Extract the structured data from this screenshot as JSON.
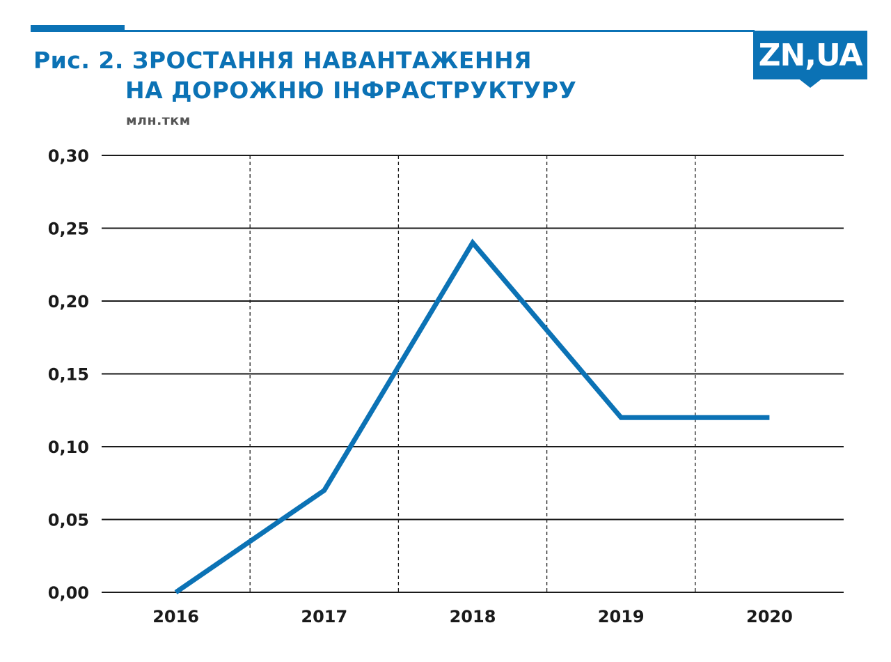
{
  "colors": {
    "accent": "#0b72b5",
    "grid": "#1a1a1a",
    "text": "#1a1a1a"
  },
  "header": {
    "title_line1": "Рис. 2. ЗРОСТАННЯ НАВАНТАЖЕННЯ",
    "title_line2": "НА ДОРОЖНЮ ІНФРАСТРУКТУРУ",
    "unit": "млн.ткм",
    "logo_text": "ZN,UA"
  },
  "chart_data": {
    "type": "line",
    "title": "Рис. 2. ЗРОСТАННЯ НАВАНТАЖЕННЯ НА ДОРОЖНЮ ІНФРАСТРУКТУРУ",
    "ylabel": "млн.ткм",
    "xlabel": "",
    "categories": [
      "2016",
      "2017",
      "2018",
      "2019",
      "2020"
    ],
    "series": [
      {
        "values": [
          0.0,
          0.07,
          0.24,
          0.12,
          0.12
        ]
      }
    ],
    "ylim": [
      0,
      0.3
    ],
    "yticks": [
      "0,00",
      "0,05",
      "0,10",
      "0,15",
      "0,20",
      "0,25",
      "0,30"
    ],
    "grid": true
  }
}
